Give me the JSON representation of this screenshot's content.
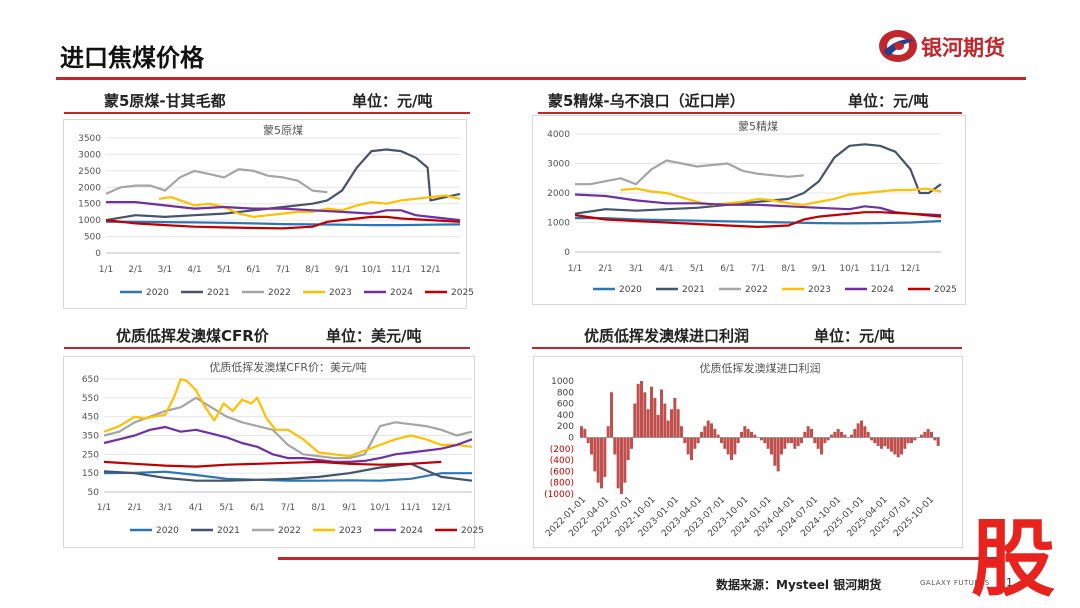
{
  "page": {
    "title": "进口焦煤价格",
    "source": "数据来源：Mysteel 银河期货",
    "brand": "GALAXY FUTURES",
    "page_number": "1",
    "stamp": "股",
    "logo_text": "银河期货"
  },
  "colors": {
    "accent": "#c0262b"
  },
  "sections": [
    {
      "title": "蒙5原煤-甘其毛都",
      "unit": "单位：元/吨"
    },
    {
      "title": "蒙5精煤-乌不浪口（近口岸）",
      "unit": "单位：元/吨"
    },
    {
      "title": "优质低挥发澳煤CFR价",
      "unit": "单位：美元/吨"
    },
    {
      "title": "优质低挥发澳煤进口利润",
      "unit": "单位：元/吨"
    }
  ],
  "chart_data": [
    {
      "type": "line",
      "title": "蒙5原煤",
      "categories": [
        "1/1",
        "2/1",
        "3/1",
        "4/1",
        "5/1",
        "6/1",
        "7/1",
        "8/1",
        "9/1",
        "10/1",
        "11/1",
        "12/1"
      ],
      "ylim": [
        0,
        3500
      ],
      "yticks": [
        0,
        500,
        1000,
        1500,
        2000,
        2500,
        3000,
        3500
      ],
      "series": [
        {
          "name": "2020",
          "color": "#2e75b6",
          "x": [
            0,
            1,
            2,
            3,
            4,
            5,
            6,
            7,
            8,
            9,
            10,
            11,
            12
          ],
          "values": [
            950,
            950,
            940,
            930,
            920,
            900,
            880,
            870,
            860,
            850,
            850,
            860,
            870
          ]
        },
        {
          "name": "2021",
          "color": "#44546a",
          "x": [
            0,
            1,
            2,
            3,
            4,
            5,
            6,
            7,
            7.5,
            8,
            8.5,
            9,
            9.5,
            10,
            10.5,
            10.9,
            11,
            12
          ],
          "values": [
            1000,
            1150,
            1100,
            1150,
            1200,
            1300,
            1400,
            1500,
            1600,
            1900,
            2600,
            3100,
            3150,
            3100,
            2900,
            2600,
            1600,
            1800
          ]
        },
        {
          "name": "2022",
          "color": "#a5a5a5",
          "x": [
            0,
            0.5,
            1,
            1.5,
            2,
            2.5,
            3,
            3.5,
            4,
            4.5,
            5,
            5.5,
            6,
            6.5,
            7,
            7.5
          ],
          "values": [
            1800,
            2000,
            2050,
            2050,
            1900,
            2300,
            2500,
            2400,
            2300,
            2550,
            2500,
            2350,
            2300,
            2200,
            1900,
            1850
          ]
        },
        {
          "name": "2023",
          "color": "#ffc000",
          "x": [
            1.8,
            2.2,
            3,
            3.5,
            4,
            4.5,
            5,
            5.5,
            6,
            6.5,
            7,
            7.5,
            8,
            8.5,
            9,
            9.5,
            10,
            10.5,
            11,
            11.5,
            12
          ],
          "values": [
            1650,
            1700,
            1450,
            1500,
            1400,
            1200,
            1100,
            1150,
            1200,
            1250,
            1250,
            1350,
            1300,
            1450,
            1550,
            1500,
            1600,
            1650,
            1700,
            1750,
            1650
          ]
        },
        {
          "name": "2024",
          "color": "#7030a0",
          "x": [
            0,
            1,
            2,
            3,
            4,
            5,
            6,
            7,
            8,
            9,
            9.5,
            10,
            10.5,
            11,
            12
          ],
          "values": [
            1550,
            1550,
            1450,
            1350,
            1400,
            1350,
            1350,
            1300,
            1250,
            1200,
            1300,
            1300,
            1150,
            1100,
            1000
          ]
        },
        {
          "name": "2025",
          "color": "#c00000",
          "x": [
            0,
            1,
            2,
            3,
            4,
            5,
            6,
            7,
            7.5,
            8,
            8.5,
            9,
            9.5,
            10,
            11,
            12
          ],
          "values": [
            1000,
            900,
            850,
            800,
            780,
            760,
            750,
            800,
            950,
            1000,
            1050,
            1100,
            1100,
            1050,
            1000,
            950
          ]
        }
      ]
    },
    {
      "type": "line",
      "title": "蒙5精煤",
      "categories": [
        "1/1",
        "2/1",
        "3/1",
        "4/1",
        "5/1",
        "6/1",
        "7/1",
        "8/1",
        "9/1",
        "10/1",
        "11/1",
        "12/1"
      ],
      "ylim": [
        0,
        4000
      ],
      "yticks": [
        0,
        1000,
        2000,
        3000,
        4000
      ],
      "series": [
        {
          "name": "2020",
          "color": "#2e75b6",
          "x": [
            0,
            1,
            2,
            3,
            4,
            5,
            6,
            7,
            8,
            9,
            10,
            11,
            12
          ],
          "values": [
            1150,
            1150,
            1100,
            1080,
            1060,
            1040,
            1020,
            1000,
            980,
            970,
            980,
            1000,
            1050
          ]
        },
        {
          "name": "2021",
          "color": "#44546a",
          "x": [
            0,
            1,
            2,
            3,
            4,
            5,
            6,
            7,
            7.5,
            8,
            8.5,
            9,
            9.5,
            10,
            10.5,
            11,
            11.3,
            11.6,
            12
          ],
          "values": [
            1300,
            1450,
            1400,
            1450,
            1500,
            1600,
            1700,
            1800,
            2000,
            2400,
            3200,
            3600,
            3650,
            3600,
            3400,
            2800,
            2000,
            2000,
            2300
          ]
        },
        {
          "name": "2022",
          "color": "#a5a5a5",
          "x": [
            0,
            0.5,
            1,
            1.5,
            2,
            2.5,
            3,
            3.5,
            4,
            4.5,
            5,
            5.5,
            6,
            6.5,
            7,
            7.5
          ],
          "values": [
            2300,
            2300,
            2400,
            2500,
            2300,
            2800,
            3100,
            3000,
            2900,
            2950,
            3000,
            2750,
            2650,
            2600,
            2550,
            2600
          ]
        },
        {
          "name": "2023",
          "color": "#ffc000",
          "x": [
            1.5,
            2,
            2.5,
            3,
            3.5,
            4,
            4.5,
            5,
            5.5,
            6,
            6.5,
            7,
            7.5,
            8,
            8.5,
            9,
            9.5,
            10,
            10.5,
            11,
            11.5,
            12
          ],
          "values": [
            2100,
            2150,
            2050,
            2000,
            1850,
            1700,
            1600,
            1650,
            1700,
            1800,
            1750,
            1650,
            1600,
            1700,
            1800,
            1950,
            2000,
            2050,
            2100,
            2100,
            2150,
            2050
          ]
        },
        {
          "name": "2024",
          "color": "#7030a0",
          "x": [
            0,
            1,
            2,
            3,
            4,
            5,
            6,
            7,
            8,
            9,
            9.5,
            10,
            10.5,
            11,
            12
          ],
          "values": [
            1950,
            1900,
            1750,
            1650,
            1650,
            1600,
            1600,
            1550,
            1500,
            1450,
            1550,
            1500,
            1350,
            1300,
            1250
          ]
        },
        {
          "name": "2025",
          "color": "#c00000",
          "x": [
            0,
            1,
            2,
            3,
            4,
            5,
            6,
            7,
            7.5,
            8,
            8.5,
            9,
            9.5,
            10,
            11,
            12
          ],
          "values": [
            1250,
            1100,
            1050,
            1000,
            950,
            900,
            850,
            900,
            1100,
            1200,
            1250,
            1300,
            1350,
            1350,
            1300,
            1200
          ]
        }
      ]
    },
    {
      "type": "line",
      "title": "优质低挥发澳煤CFR价：美元/吨",
      "categories": [
        "1/1",
        "2/1",
        "3/1",
        "4/1",
        "5/1",
        "6/1",
        "7/1",
        "8/1",
        "9/1",
        "10/1",
        "11/1",
        "12/1"
      ],
      "ylim": [
        50,
        650
      ],
      "yticks": [
        50,
        150,
        250,
        350,
        450,
        550,
        650
      ],
      "series": [
        {
          "name": "2020",
          "color": "#2e75b6",
          "x": [
            0,
            1,
            2,
            3,
            4,
            5,
            6,
            7,
            8,
            9,
            10,
            11,
            12
          ],
          "values": [
            150,
            152,
            158,
            140,
            120,
            115,
            110,
            110,
            112,
            110,
            120,
            150,
            150
          ]
        },
        {
          "name": "2021",
          "color": "#44546a",
          "x": [
            0,
            1,
            2,
            3,
            4,
            5,
            6,
            7,
            8,
            9,
            10,
            11,
            12
          ],
          "values": [
            160,
            150,
            125,
            110,
            110,
            115,
            120,
            130,
            150,
            180,
            200,
            130,
            110
          ]
        },
        {
          "name": "2022",
          "color": "#a5a5a5",
          "x": [
            0,
            0.5,
            1,
            1.5,
            2,
            2.5,
            3,
            3.5,
            4,
            4.5,
            5,
            5.5,
            6,
            6.5,
            7,
            7.5,
            8,
            8.5,
            9,
            9.5,
            10,
            10.5,
            11,
            11.5,
            12
          ],
          "values": [
            350,
            370,
            420,
            450,
            480,
            500,
            550,
            500,
            450,
            420,
            400,
            380,
            300,
            250,
            240,
            230,
            230,
            250,
            400,
            420,
            410,
            400,
            380,
            350,
            370
          ]
        },
        {
          "name": "2023",
          "color": "#ffc000",
          "x": [
            0,
            0.5,
            1,
            1.3,
            1.6,
            2,
            2.3,
            2.5,
            2.7,
            3,
            3.3,
            3.6,
            3.9,
            4.2,
            4.5,
            4.8,
            5,
            5.3,
            5.6,
            6,
            6.5,
            7,
            7.5,
            8,
            8.5,
            9,
            9.5,
            10,
            10.5,
            11,
            11.5,
            12
          ],
          "values": [
            370,
            400,
            450,
            440,
            450,
            460,
            560,
            650,
            640,
            590,
            500,
            430,
            520,
            480,
            540,
            520,
            550,
            440,
            380,
            380,
            330,
            260,
            250,
            240,
            270,
            300,
            330,
            350,
            330,
            300,
            300,
            290
          ]
        },
        {
          "name": "2024",
          "color": "#7030a0",
          "x": [
            0,
            0.5,
            1,
            1.5,
            2,
            2.5,
            3,
            3.5,
            4,
            4.5,
            5,
            5.5,
            6,
            6.5,
            7,
            7.5,
            8,
            8.5,
            9,
            9.5,
            10,
            10.5,
            11,
            11.5,
            12
          ],
          "values": [
            310,
            330,
            350,
            380,
            395,
            370,
            380,
            360,
            340,
            310,
            290,
            250,
            230,
            230,
            220,
            210,
            210,
            215,
            230,
            250,
            260,
            270,
            280,
            300,
            330
          ]
        },
        {
          "name": "2025",
          "color": "#c00000",
          "x": [
            0,
            1,
            2,
            3,
            4,
            5,
            6,
            7,
            8,
            9,
            10,
            11
          ],
          "values": [
            210,
            200,
            190,
            185,
            195,
            200,
            205,
            210,
            200,
            195,
            200,
            210
          ]
        }
      ]
    },
    {
      "type": "bar",
      "title": "优质低挥发澳煤进口利润",
      "ylim": [
        -1000,
        1000
      ],
      "yticks": [
        -1000,
        -800,
        -600,
        -400,
        -200,
        0,
        200,
        400,
        600,
        800,
        1000
      ],
      "ytick_labels": [
        "(1000)",
        "(800)",
        "(600)",
        "(400)",
        "(200)",
        "0",
        "200",
        "400",
        "600",
        "800",
        "1000"
      ],
      "xtick_labels": [
        "2022-01-01",
        "2022-04-01",
        "2022-07-01",
        "2022-10-01",
        "2023-01-01",
        "2023-04-01",
        "2023-07-01",
        "2023-10-01",
        "2024-01-01",
        "2024-04-01",
        "2024-07-01",
        "2024-10-01",
        "2025-01-01",
        "2025-04-01",
        "2025-07-01",
        "2025-10-01"
      ],
      "color": "#c0504d",
      "values": [
        200,
        150,
        -100,
        -300,
        -600,
        -800,
        -900,
        -700,
        200,
        800,
        -300,
        -900,
        -1000,
        -800,
        -400,
        -200,
        600,
        950,
        1000,
        800,
        500,
        900,
        700,
        400,
        850,
        600,
        300,
        500,
        700,
        500,
        200,
        -100,
        -300,
        -400,
        -200,
        -100,
        100,
        200,
        300,
        250,
        150,
        50,
        -100,
        -200,
        -300,
        -400,
        -300,
        -100,
        100,
        200,
        150,
        100,
        50,
        0,
        -50,
        -100,
        -200,
        -300,
        -500,
        -600,
        -300,
        -200,
        -100,
        -100,
        -200,
        -150,
        -100,
        100,
        200,
        150,
        -100,
        -200,
        -300,
        -100,
        -50,
        50,
        100,
        150,
        100,
        50,
        0,
        50,
        150,
        250,
        300,
        200,
        100,
        -50,
        -100,
        -150,
        -200,
        -150,
        -200,
        -250,
        -300,
        -350,
        -300,
        -200,
        -100,
        -100,
        -50,
        0,
        50,
        100,
        150,
        100,
        -50,
        -150
      ]
    }
  ]
}
